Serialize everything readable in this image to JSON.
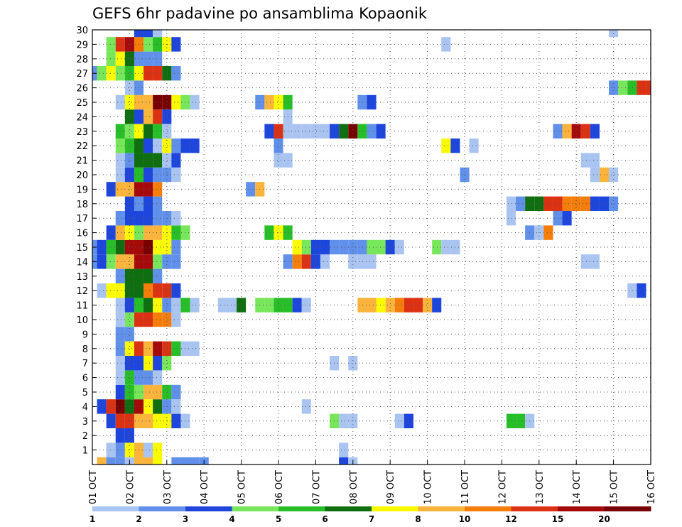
{
  "chart_data": {
    "type": "heatmap",
    "title": "GEFS 6hr padavine po ansamblima Kopaonik",
    "x_labels": [
      "01 OCT",
      "02 OCT",
      "03 OCT",
      "04 OCT",
      "05 OCT",
      "06 OCT",
      "07 OCT",
      "08 OCT",
      "09 OCT",
      "10 OCT",
      "11 OCT",
      "12 OCT",
      "13 OCT",
      "14 OCT",
      "15 OCT",
      "16 OCT"
    ],
    "y_labels": [
      "1",
      "2",
      "3",
      "4",
      "5",
      "6",
      "7",
      "8",
      "9",
      "10",
      "11",
      "12",
      "13",
      "14",
      "15",
      "16",
      "17",
      "18",
      "19",
      "20",
      "21",
      "22",
      "23",
      "24",
      "25",
      "26",
      "27",
      "28",
      "29",
      "30"
    ],
    "x_range": [
      0,
      60
    ],
    "y_range": [
      0,
      30
    ],
    "grid": true,
    "legend": {
      "placement": "bottom",
      "labels": [
        "1",
        "2",
        "3",
        "4",
        "5",
        "6",
        "7",
        "8",
        "10",
        "12",
        "15",
        "20"
      ],
      "colors": [
        "#aac4f2",
        "#6090ea",
        "#1e46dc",
        "#78e65a",
        "#28be28",
        "#0f6e0f",
        "#fafa00",
        "#fab43c",
        "#f57d0a",
        "#dc3214",
        "#a50a0a",
        "#780000"
      ]
    },
    "cell_data": [
      [
        0,
        1,
        7
      ],
      [
        0,
        2,
        1
      ],
      [
        0,
        3,
        1
      ],
      [
        0,
        4,
        0
      ],
      [
        0,
        5,
        7
      ],
      [
        0,
        6,
        7
      ],
      [
        0,
        7,
        6
      ],
      [
        0,
        9,
        1
      ],
      [
        0,
        10,
        1
      ],
      [
        0,
        11,
        1
      ],
      [
        0,
        12,
        1
      ],
      [
        0,
        27,
        2
      ],
      [
        0,
        28,
        0
      ],
      [
        1,
        2,
        0
      ],
      [
        1,
        3,
        1
      ],
      [
        1,
        4,
        6
      ],
      [
        1,
        5,
        7
      ],
      [
        1,
        6,
        0
      ],
      [
        1,
        7,
        6
      ],
      [
        1,
        27,
        0
      ],
      [
        2,
        3,
        2
      ],
      [
        2,
        4,
        2
      ],
      [
        3,
        2,
        2
      ],
      [
        3,
        3,
        9
      ],
      [
        3,
        4,
        9
      ],
      [
        3,
        5,
        7
      ],
      [
        3,
        6,
        7
      ],
      [
        3,
        7,
        6
      ],
      [
        3,
        8,
        6
      ],
      [
        3,
        9,
        2
      ],
      [
        3,
        10,
        0
      ],
      [
        3,
        26,
        3
      ],
      [
        3,
        27,
        0
      ],
      [
        3,
        28,
        0
      ],
      [
        3,
        33,
        0
      ],
      [
        3,
        34,
        2
      ],
      [
        3,
        45,
        4
      ],
      [
        3,
        46,
        4
      ],
      [
        3,
        47,
        0
      ],
      [
        4,
        1,
        2
      ],
      [
        4,
        2,
        9
      ],
      [
        4,
        3,
        11
      ],
      [
        4,
        4,
        5
      ],
      [
        4,
        5,
        10
      ],
      [
        4,
        6,
        6
      ],
      [
        4,
        7,
        5
      ],
      [
        4,
        8,
        1
      ],
      [
        4,
        9,
        0
      ],
      [
        4,
        23,
        0
      ],
      [
        5,
        3,
        2
      ],
      [
        5,
        4,
        4
      ],
      [
        5,
        5,
        3
      ],
      [
        5,
        6,
        7
      ],
      [
        5,
        7,
        7
      ],
      [
        5,
        8,
        4
      ],
      [
        5,
        9,
        1
      ],
      [
        6,
        3,
        0
      ],
      [
        6,
        4,
        4
      ],
      [
        6,
        5,
        1
      ],
      [
        6,
        6,
        1
      ],
      [
        6,
        7,
        0
      ],
      [
        7,
        3,
        0
      ],
      [
        7,
        4,
        2
      ],
      [
        7,
        5,
        2
      ],
      [
        7,
        6,
        6
      ],
      [
        7,
        7,
        2
      ],
      [
        7,
        8,
        3
      ],
      [
        7,
        26,
        0
      ],
      [
        7,
        28,
        0
      ],
      [
        8,
        3,
        1
      ],
      [
        8,
        4,
        6
      ],
      [
        8,
        5,
        9
      ],
      [
        8,
        6,
        7
      ],
      [
        8,
        7,
        10
      ],
      [
        8,
        8,
        9
      ],
      [
        8,
        9,
        4
      ],
      [
        8,
        10,
        0
      ],
      [
        8,
        11,
        0
      ],
      [
        9,
        3,
        1
      ],
      [
        9,
        4,
        1
      ],
      [
        10,
        3,
        0
      ],
      [
        10,
        4,
        3
      ],
      [
        10,
        5,
        9
      ],
      [
        10,
        6,
        9
      ],
      [
        10,
        7,
        8
      ],
      [
        10,
        8,
        8
      ],
      [
        10,
        9,
        0
      ],
      [
        11,
        3,
        0
      ],
      [
        11,
        4,
        2
      ],
      [
        11,
        5,
        4
      ],
      [
        11,
        6,
        5
      ],
      [
        11,
        7,
        6
      ],
      [
        11,
        8,
        1
      ],
      [
        11,
        9,
        0
      ],
      [
        11,
        10,
        4
      ],
      [
        11,
        11,
        0
      ],
      [
        11,
        14,
        0
      ],
      [
        11,
        15,
        0
      ],
      [
        11,
        16,
        5
      ],
      [
        11,
        18,
        3
      ],
      [
        11,
        19,
        3
      ],
      [
        11,
        20,
        4
      ],
      [
        11,
        21,
        4
      ],
      [
        11,
        22,
        2
      ],
      [
        11,
        23,
        0
      ],
      [
        11,
        29,
        7
      ],
      [
        11,
        30,
        7
      ],
      [
        11,
        31,
        6
      ],
      [
        11,
        32,
        7
      ],
      [
        11,
        33,
        8
      ],
      [
        11,
        34,
        9
      ],
      [
        11,
        35,
        9
      ],
      [
        11,
        36,
        7
      ],
      [
        11,
        37,
        2
      ],
      [
        12,
        1,
        0
      ],
      [
        12,
        2,
        6
      ],
      [
        12,
        3,
        6
      ],
      [
        12,
        4,
        5
      ],
      [
        12,
        5,
        5
      ],
      [
        12,
        6,
        8
      ],
      [
        12,
        7,
        9
      ],
      [
        12,
        8,
        9
      ],
      [
        12,
        9,
        2
      ],
      [
        12,
        58,
        0
      ],
      [
        12,
        59,
        2
      ],
      [
        13,
        3,
        1
      ],
      [
        13,
        4,
        5
      ],
      [
        13,
        5,
        5
      ],
      [
        13,
        6,
        5
      ],
      [
        13,
        7,
        1
      ],
      [
        14,
        0,
        1
      ],
      [
        14,
        1,
        2
      ],
      [
        14,
        2,
        3
      ],
      [
        14,
        3,
        7
      ],
      [
        14,
        4,
        7
      ],
      [
        14,
        5,
        10
      ],
      [
        14,
        6,
        10
      ],
      [
        14,
        7,
        3
      ],
      [
        14,
        8,
        1
      ],
      [
        14,
        9,
        1
      ],
      [
        14,
        21,
        1
      ],
      [
        14,
        22,
        8
      ],
      [
        14,
        23,
        9
      ],
      [
        14,
        24,
        2
      ],
      [
        14,
        25,
        0
      ],
      [
        14,
        28,
        0
      ],
      [
        14,
        29,
        0
      ],
      [
        14,
        30,
        0
      ],
      [
        14,
        53,
        0
      ],
      [
        14,
        54,
        0
      ],
      [
        15,
        0,
        1
      ],
      [
        15,
        1,
        2
      ],
      [
        15,
        2,
        4
      ],
      [
        15,
        3,
        5
      ],
      [
        15,
        4,
        10
      ],
      [
        15,
        5,
        10
      ],
      [
        15,
        6,
        11
      ],
      [
        15,
        7,
        6
      ],
      [
        15,
        8,
        6
      ],
      [
        15,
        9,
        1
      ],
      [
        15,
        22,
        6
      ],
      [
        15,
        23,
        3
      ],
      [
        15,
        24,
        2
      ],
      [
        15,
        25,
        2
      ],
      [
        15,
        26,
        1
      ],
      [
        15,
        27,
        1
      ],
      [
        15,
        28,
        1
      ],
      [
        15,
        29,
        1
      ],
      [
        15,
        30,
        3
      ],
      [
        15,
        31,
        3
      ],
      [
        15,
        32,
        2
      ],
      [
        15,
        33,
        0
      ],
      [
        15,
        37,
        3
      ],
      [
        15,
        38,
        0
      ],
      [
        15,
        39,
        0
      ],
      [
        16,
        2,
        2
      ],
      [
        16,
        3,
        7
      ],
      [
        16,
        4,
        6
      ],
      [
        16,
        5,
        3
      ],
      [
        16,
        6,
        7
      ],
      [
        16,
        7,
        7
      ],
      [
        16,
        8,
        6
      ],
      [
        16,
        9,
        4
      ],
      [
        16,
        10,
        3
      ],
      [
        16,
        19,
        4
      ],
      [
        16,
        20,
        6
      ],
      [
        16,
        21,
        4
      ],
      [
        16,
        47,
        1
      ],
      [
        16,
        48,
        0
      ],
      [
        16,
        49,
        8
      ],
      [
        17,
        3,
        1
      ],
      [
        17,
        4,
        2
      ],
      [
        17,
        5,
        2
      ],
      [
        17,
        6,
        2
      ],
      [
        17,
        7,
        1
      ],
      [
        17,
        8,
        1
      ],
      [
        17,
        9,
        0
      ],
      [
        17,
        45,
        0
      ],
      [
        17,
        50,
        1
      ],
      [
        17,
        51,
        2
      ],
      [
        18,
        4,
        2
      ],
      [
        18,
        5,
        1
      ],
      [
        18,
        6,
        2
      ],
      [
        18,
        7,
        1
      ],
      [
        18,
        45,
        0
      ],
      [
        18,
        46,
        1
      ],
      [
        18,
        47,
        5
      ],
      [
        18,
        48,
        5
      ],
      [
        18,
        49,
        9
      ],
      [
        18,
        50,
        9
      ],
      [
        18,
        51,
        8
      ],
      [
        18,
        52,
        8
      ],
      [
        18,
        53,
        8
      ],
      [
        18,
        54,
        2
      ],
      [
        18,
        55,
        2
      ],
      [
        18,
        56,
        1
      ],
      [
        19,
        2,
        2
      ],
      [
        19,
        3,
        7
      ],
      [
        19,
        4,
        7
      ],
      [
        19,
        5,
        10
      ],
      [
        19,
        6,
        10
      ],
      [
        19,
        7,
        8
      ],
      [
        19,
        17,
        1
      ],
      [
        19,
        18,
        7
      ],
      [
        20,
        3,
        0
      ],
      [
        20,
        4,
        2
      ],
      [
        20,
        5,
        4
      ],
      [
        20,
        6,
        2
      ],
      [
        20,
        7,
        1
      ],
      [
        20,
        8,
        1
      ],
      [
        20,
        9,
        0
      ],
      [
        20,
        40,
        1
      ],
      [
        20,
        54,
        0
      ],
      [
        20,
        55,
        7
      ],
      [
        20,
        56,
        0
      ],
      [
        21,
        3,
        0
      ],
      [
        21,
        4,
        1
      ],
      [
        21,
        5,
        5
      ],
      [
        21,
        6,
        5
      ],
      [
        21,
        7,
        5
      ],
      [
        21,
        8,
        0
      ],
      [
        21,
        9,
        2
      ],
      [
        21,
        20,
        0
      ],
      [
        21,
        21,
        0
      ],
      [
        21,
        53,
        0
      ],
      [
        21,
        54,
        0
      ],
      [
        22,
        3,
        3
      ],
      [
        22,
        4,
        4
      ],
      [
        22,
        5,
        5
      ],
      [
        22,
        6,
        2
      ],
      [
        22,
        7,
        0
      ],
      [
        22,
        8,
        6
      ],
      [
        22,
        9,
        1
      ],
      [
        22,
        10,
        2
      ],
      [
        22,
        11,
        2
      ],
      [
        22,
        20,
        1
      ],
      [
        22,
        38,
        6
      ],
      [
        22,
        39,
        2
      ],
      [
        22,
        41,
        0
      ],
      [
        23,
        3,
        4
      ],
      [
        23,
        4,
        3
      ],
      [
        23,
        5,
        6
      ],
      [
        23,
        6,
        5
      ],
      [
        23,
        7,
        4
      ],
      [
        23,
        8,
        0
      ],
      [
        23,
        19,
        2
      ],
      [
        23,
        20,
        9
      ],
      [
        23,
        21,
        0
      ],
      [
        23,
        22,
        0
      ],
      [
        23,
        23,
        0
      ],
      [
        23,
        24,
        0
      ],
      [
        23,
        25,
        0
      ],
      [
        23,
        26,
        2
      ],
      [
        23,
        27,
        5
      ],
      [
        23,
        28,
        11
      ],
      [
        23,
        29,
        4
      ],
      [
        23,
        30,
        1
      ],
      [
        23,
        31,
        2
      ],
      [
        23,
        50,
        1
      ],
      [
        23,
        51,
        7
      ],
      [
        23,
        52,
        10
      ],
      [
        23,
        53,
        9
      ],
      [
        23,
        54,
        2
      ],
      [
        24,
        4,
        5
      ],
      [
        24,
        5,
        2
      ],
      [
        24,
        6,
        7
      ],
      [
        24,
        7,
        9
      ],
      [
        24,
        8,
        2
      ],
      [
        24,
        21,
        0
      ],
      [
        25,
        3,
        0
      ],
      [
        25,
        4,
        6
      ],
      [
        25,
        5,
        7
      ],
      [
        25,
        6,
        7
      ],
      [
        25,
        7,
        11
      ],
      [
        25,
        8,
        11
      ],
      [
        25,
        9,
        6
      ],
      [
        25,
        10,
        3
      ],
      [
        25,
        11,
        0
      ],
      [
        25,
        18,
        1
      ],
      [
        25,
        19,
        7
      ],
      [
        25,
        20,
        6
      ],
      [
        25,
        21,
        4
      ],
      [
        25,
        29,
        1
      ],
      [
        25,
        30,
        2
      ],
      [
        26,
        4,
        0
      ],
      [
        26,
        5,
        1
      ],
      [
        26,
        56,
        1
      ],
      [
        26,
        57,
        3
      ],
      [
        26,
        58,
        4
      ],
      [
        26,
        59,
        9
      ],
      [
        26,
        60,
        9
      ],
      [
        27,
        0,
        1
      ],
      [
        27,
        1,
        3
      ],
      [
        27,
        2,
        6
      ],
      [
        27,
        3,
        3
      ],
      [
        27,
        4,
        4
      ],
      [
        27,
        5,
        6
      ],
      [
        27,
        6,
        9
      ],
      [
        27,
        7,
        9
      ],
      [
        27,
        8,
        5
      ],
      [
        27,
        9,
        1
      ],
      [
        28,
        2,
        3
      ],
      [
        28,
        3,
        6
      ],
      [
        28,
        4,
        5
      ],
      [
        28,
        5,
        1
      ],
      [
        28,
        6,
        1
      ],
      [
        28,
        7,
        1
      ],
      [
        29,
        2,
        3
      ],
      [
        29,
        3,
        9
      ],
      [
        29,
        4,
        10
      ],
      [
        29,
        5,
        8
      ],
      [
        29,
        6,
        3
      ],
      [
        29,
        7,
        4
      ],
      [
        29,
        8,
        6
      ],
      [
        29,
        9,
        2
      ],
      [
        29,
        38,
        0
      ],
      [
        30,
        5,
        2
      ],
      [
        30,
        6,
        2
      ],
      [
        30,
        7,
        0
      ],
      [
        30,
        56,
        0
      ]
    ]
  }
}
